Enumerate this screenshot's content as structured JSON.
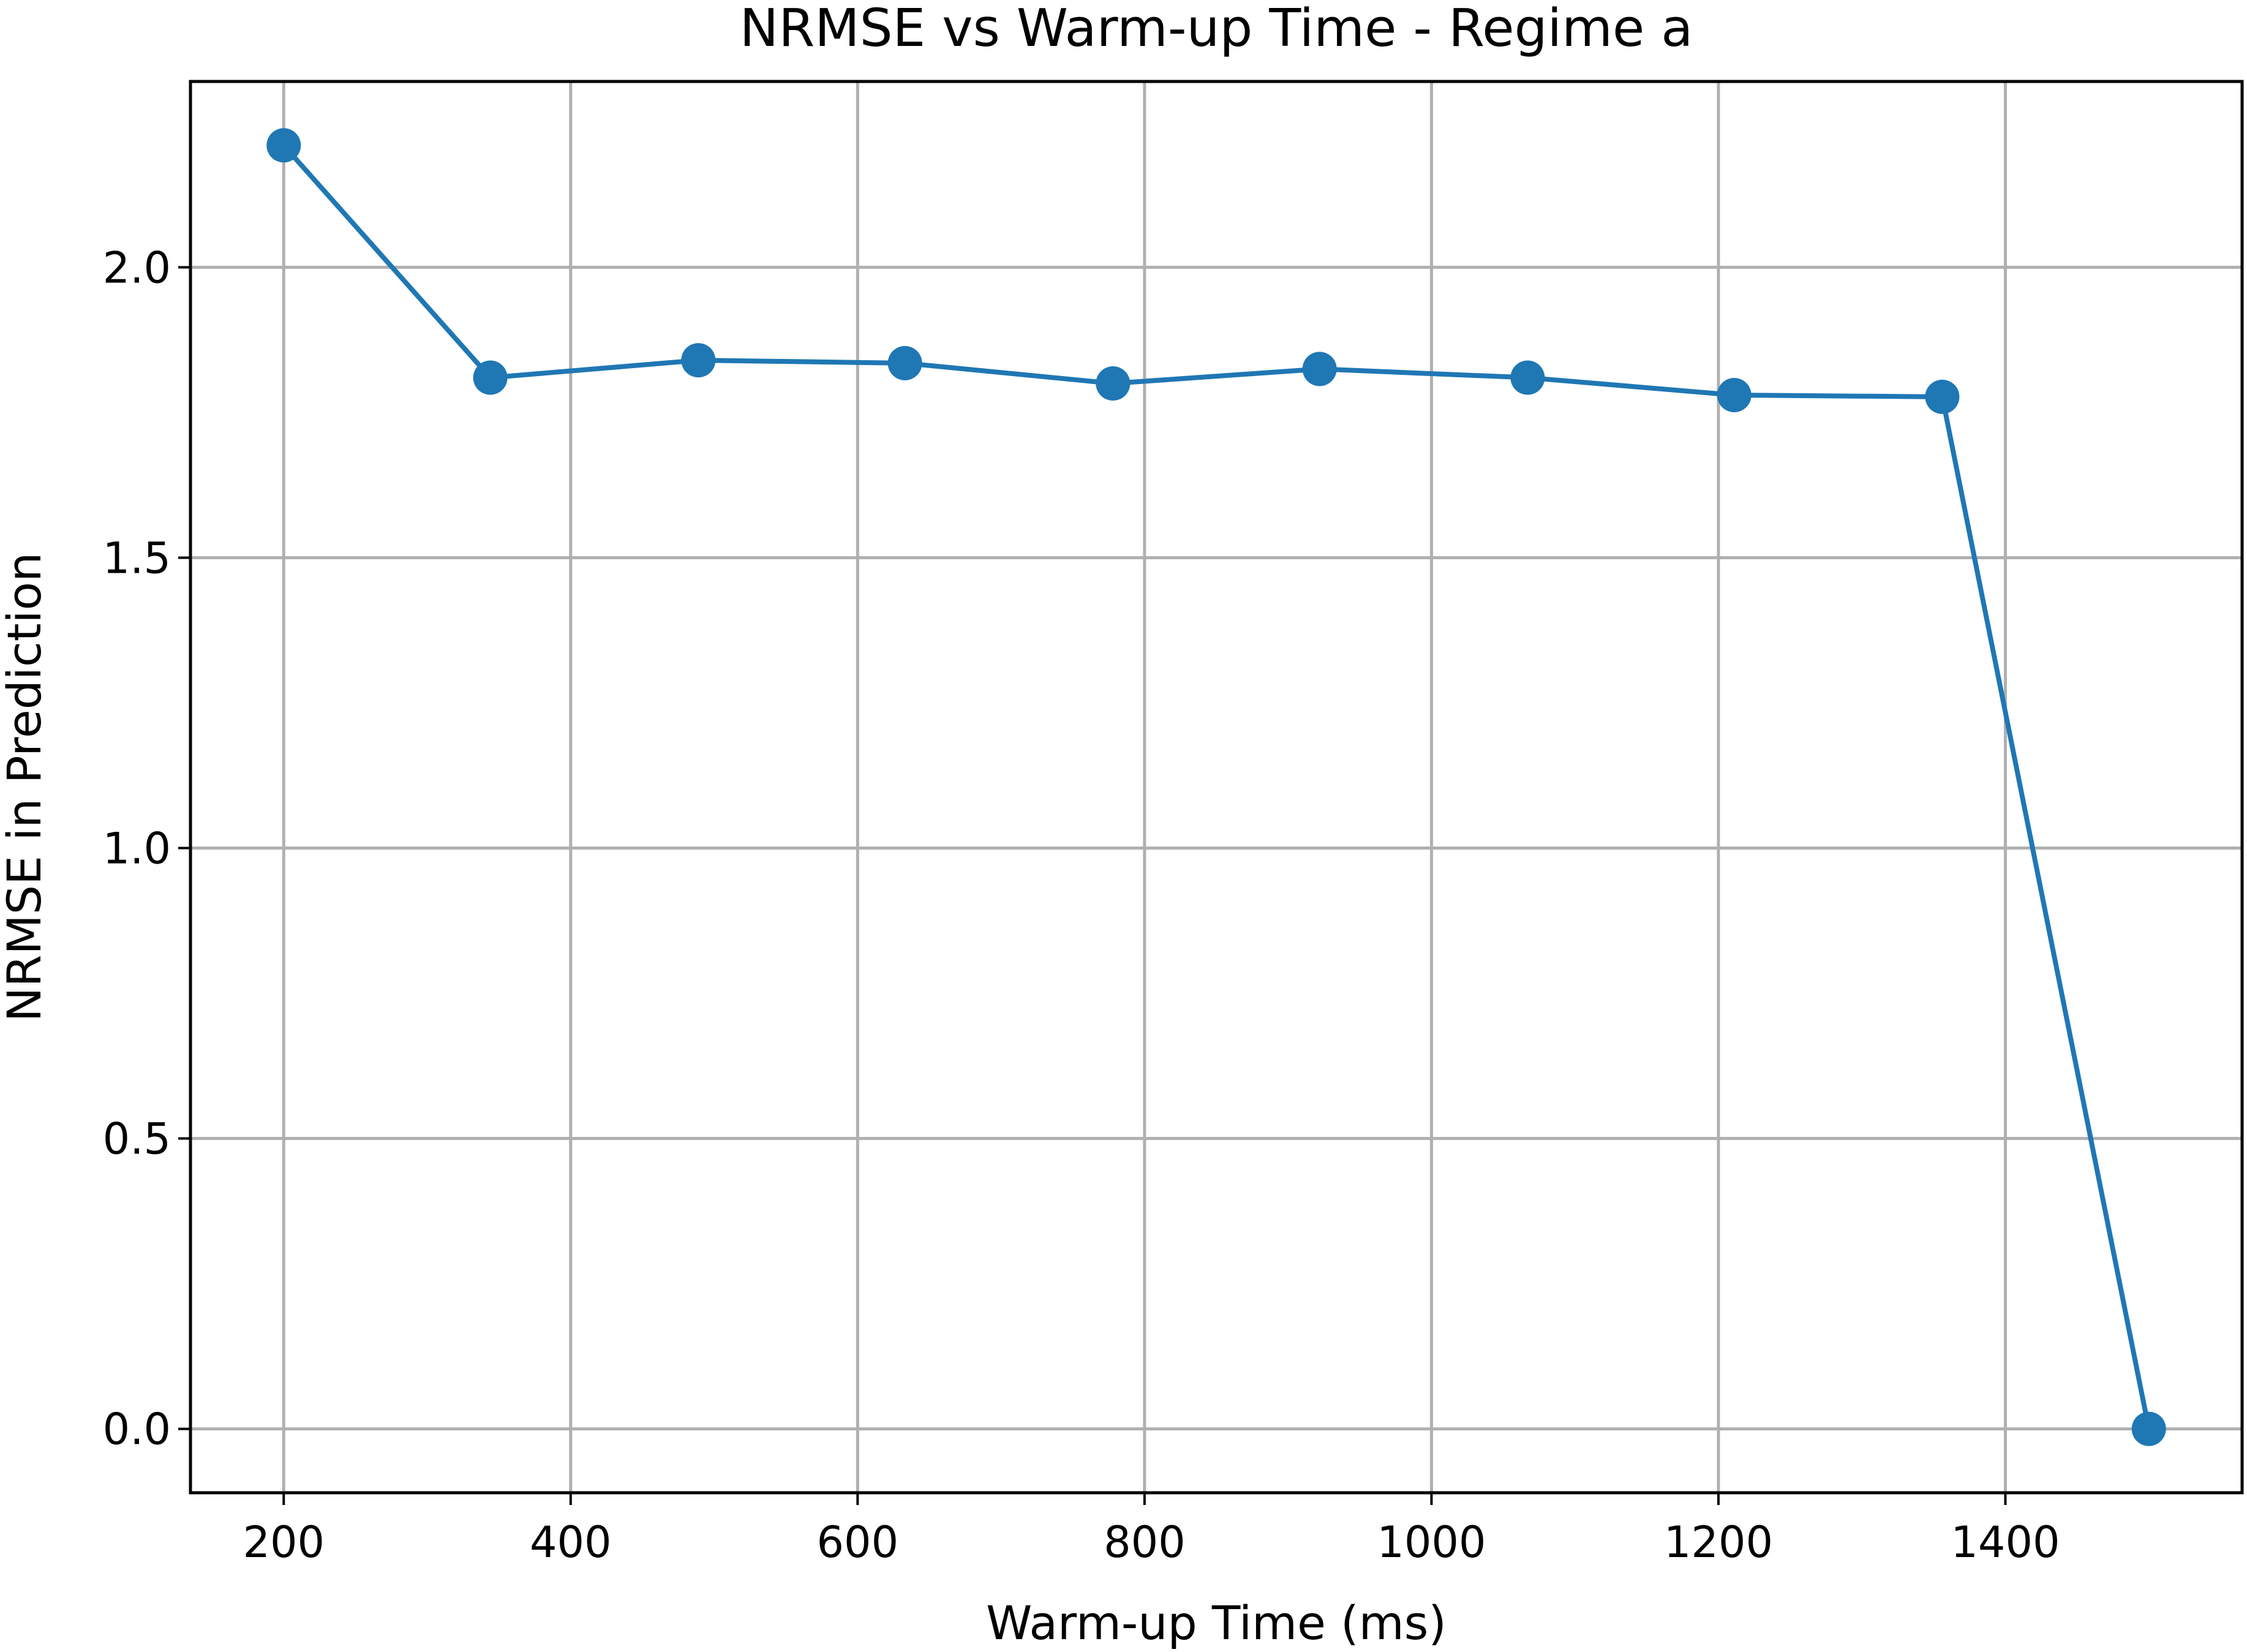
{
  "chart_data": {
    "type": "line",
    "title": "NRMSE vs Warm-up Time - Regime a",
    "xlabel": "Warm-up Time (ms)",
    "ylabel": "NRMSE in Prediction",
    "xlim": [
      135,
      1565
    ],
    "ylim": [
      -0.11,
      2.32
    ],
    "xticks": [
      200,
      400,
      600,
      800,
      1000,
      1200,
      1400
    ],
    "xtick_labels": [
      "200",
      "400",
      "600",
      "800",
      "1000",
      "1200",
      "1400"
    ],
    "yticks": [
      0.0,
      0.5,
      1.0,
      1.5,
      2.0
    ],
    "ytick_labels": [
      "0.0",
      "0.5",
      "1.0",
      "1.5",
      "2.0"
    ],
    "grid": true,
    "legend": false,
    "series": [
      {
        "color": "#1f77b4",
        "marker": "circle",
        "x": [
          200,
          344,
          489,
          633,
          778,
          922,
          1067,
          1211,
          1356,
          1500
        ],
        "y": [
          2.21,
          1.81,
          1.84,
          1.835,
          1.8,
          1.825,
          1.81,
          1.78,
          1.777,
          0.0
        ]
      }
    ]
  }
}
